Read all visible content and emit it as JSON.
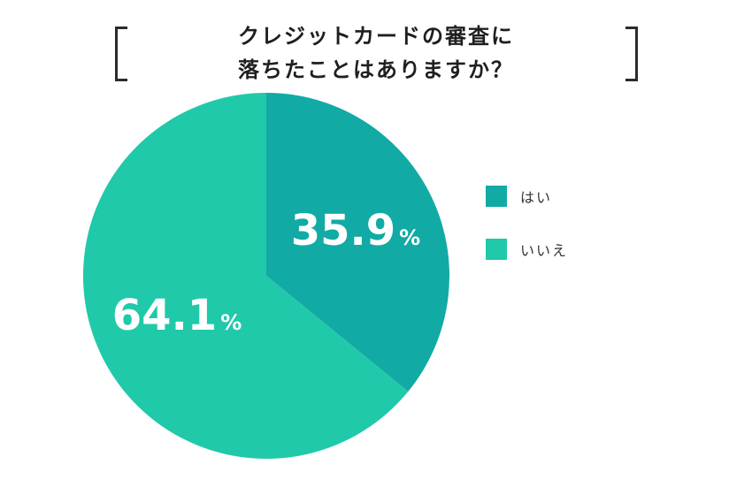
{
  "chart_data": {
    "type": "pie",
    "title_lines": [
      "クレジットカードの審査に",
      "落ちたことはありますか？"
    ],
    "slices": [
      {
        "label": "はい",
        "value": 35.9,
        "value_text": "35.9",
        "unit": "%",
        "color": "#12aaa5"
      },
      {
        "label": "いいえ",
        "value": 64.1,
        "value_text": "64.1",
        "unit": "%",
        "color": "#20c9a9"
      }
    ],
    "start_angle": "12 o'clock",
    "direction": "clockwise",
    "legend_placement": "right"
  }
}
